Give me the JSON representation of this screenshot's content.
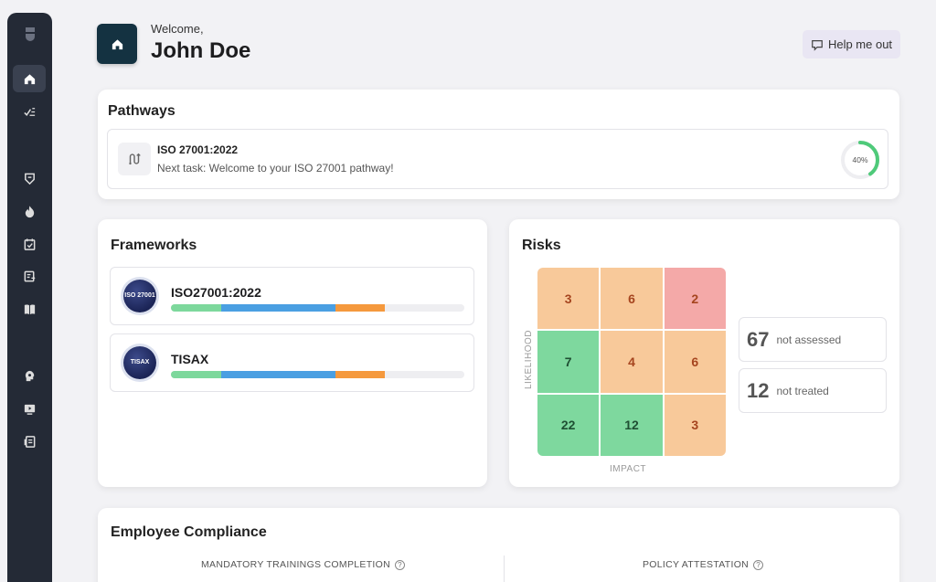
{
  "header": {
    "welcome": "Welcome,",
    "username": "John Doe",
    "help_label": "Help me out"
  },
  "pathways": {
    "title": "Pathways",
    "item": {
      "name": "ISO 27001:2022",
      "task": "Next task: Welcome to your ISO 27001 pathway!",
      "progress_label": "40%",
      "progress_value": 0.4
    }
  },
  "frameworks": {
    "title": "Frameworks",
    "items": [
      {
        "name": "ISO27001:2022",
        "badge": "ISO 27001",
        "segments": [
          0.17,
          0.39,
          0.17
        ]
      },
      {
        "name": "TISAX",
        "badge": "TISAX",
        "segments": [
          0.17,
          0.39,
          0.17
        ]
      }
    ],
    "segment_colors": [
      "#7dd89c",
      "#4a9fe2",
      "#f5993d"
    ]
  },
  "risks": {
    "title": "Risks",
    "y_axis": "LIKELIHOOD",
    "x_axis": "IMPACT",
    "grid": [
      [
        {
          "v": "3",
          "c": "#f8c99a",
          "t": "#a6451f"
        },
        {
          "v": "6",
          "c": "#f8c99a",
          "t": "#a6451f"
        },
        {
          "v": "2",
          "c": "#f4a9a8",
          "t": "#a6451f"
        }
      ],
      [
        {
          "v": "7",
          "c": "#7ed89e",
          "t": "#1f4f33"
        },
        {
          "v": "4",
          "c": "#f8c99a",
          "t": "#a6451f"
        },
        {
          "v": "6",
          "c": "#f8c99a",
          "t": "#a6451f"
        }
      ],
      [
        {
          "v": "22",
          "c": "#7ed89e",
          "t": "#1f4f33"
        },
        {
          "v": "12",
          "c": "#7ed89e",
          "t": "#1f4f33"
        },
        {
          "v": "3",
          "c": "#f8c99a",
          "t": "#a6451f"
        }
      ]
    ],
    "not_assessed_count": "67",
    "not_assessed_label": "not assessed",
    "not_treated_count": "12",
    "not_treated_label": "not treated"
  },
  "employee_compliance": {
    "title": "Employee Compliance",
    "col1": "MANDATORY TRAININGS COMPLETION",
    "col2": "POLICY ATTESTATION"
  },
  "sidebar": {
    "icons": [
      "logo-icon",
      "home-icon",
      "checklist-icon",
      "shield-icon",
      "fire-icon",
      "calendar-check-icon",
      "document-arrow-icon",
      "book-icon",
      "head-icon",
      "video-icon",
      "document-list-icon"
    ]
  }
}
